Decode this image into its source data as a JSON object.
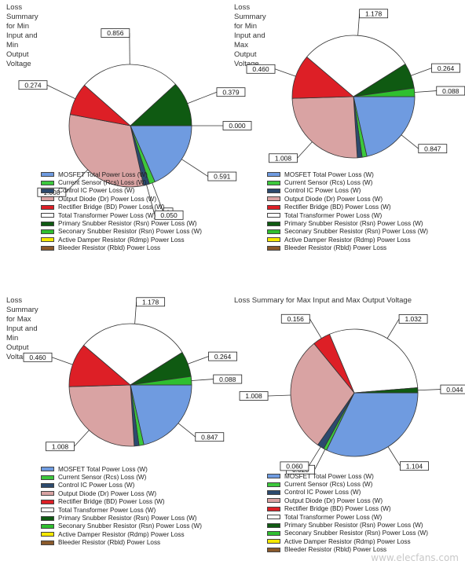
{
  "legend_colors": [
    "#6f9be0",
    "#3cc83c",
    "#2c4a6e",
    "#d9a3a3",
    "#dd1f26",
    "#ffffff",
    "#0f5a12",
    "#2fbf2f",
    "#f5e800",
    "#8b5a2b"
  ],
  "chart_data": [
    {
      "type": "pie",
      "title": "Loss Summary for Min Input and Min Output Voltage",
      "categories": [
        "MOSFET Total Power Loss (W)",
        "Current Sensor (Rcs) Loss (W)",
        "Control IC Power Loss (W)",
        "Output Diode (Dr) Power Loss (W)",
        "Rectifier Bridge (BD) Power Loss (W)",
        "Total Transformer Power Loss (W)",
        "Primary Snubber Resistor (Rsn) Power Loss (W)",
        "Seconary Snubber Resistor (Rsn) Power Loss (W)",
        "Active Damper Resistor (Rdmp) Power Loss",
        "Bleeder Resistor (Rbld) Power Loss"
      ],
      "values": [
        0.591,
        0.05,
        0.05,
        1.008,
        0.274,
        0.856,
        0.379,
        0.0,
        0.0,
        0.0
      ],
      "data_labels": [
        "0.591",
        "0",
        "0.050",
        "1.008",
        "0.274",
        "0.856",
        "0.379",
        "0.000",
        "",
        ""
      ],
      "legend_position": "bottom"
    },
    {
      "type": "pie",
      "title": "Loss Summary for Min Input and Max Output Voltage",
      "categories": [
        "MOSFET Total Power Loss (W)",
        "Current Sensor (Rcs) Loss (W)",
        "Control IC Power Loss (W)",
        "Output Diode (Dr) Power Loss (W)",
        "Rectifier Bridge (BD) Power Loss (W)",
        "Total Transformer Power Loss (W)",
        "Primary Snubber Resistor (Rsn) Power Loss (W)",
        "Seconary Snubber Resistor (Rsn) Power Loss (W)",
        "Active Damper Resistor (Rdmp) Power Loss",
        "Bleeder Resistor (Rbld) Power Loss"
      ],
      "values": [
        0.847,
        0.05,
        0.05,
        1.008,
        0.46,
        1.178,
        0.264,
        0.088,
        0.0,
        0.0
      ],
      "data_labels": [
        "0.847",
        "",
        "",
        "1.008",
        "0.460",
        "1.178",
        "0.264",
        "0.088",
        "",
        ""
      ],
      "legend_position": "bottom"
    },
    {
      "type": "pie",
      "title": "Loss Summary for Max Input and Min Output Voltage",
      "categories": [
        "MOSFET Total Power Loss (W)",
        "Current Sensor (Rcs) Loss (W)",
        "Control IC Power Loss (W)",
        "Output Diode (Dr) Power Loss (W)",
        "Rectifier Bridge (BD) Power Loss (W)",
        "Total Transformer Power Loss (W)",
        "Primary Snubber Resistor (Rsn) Power Loss (W)",
        "Seconary Snubber Resistor (Rsn) Power Loss (W)",
        "Active Damper Resistor (Rdmp) Power Loss",
        "Bleeder Resistor (Rbld) Power Loss"
      ],
      "values": [
        0.847,
        0.05,
        0.05,
        1.008,
        0.46,
        1.178,
        0.264,
        0.088,
        0.0,
        0.0
      ],
      "data_labels": [
        "0.847",
        "",
        "",
        "1.008",
        "0.460",
        "1.178",
        "0.264",
        "0.088",
        "",
        ""
      ],
      "legend_position": "bottom"
    },
    {
      "type": "pie",
      "title": "Loss Summary for Max Input and Max Output Voltage",
      "categories": [
        "MOSFET Total Power Loss (W)",
        "Current Sensor (Rcs) Loss (W)",
        "Control IC Power Loss (W)",
        "Output Diode (Dr) Power Loss (W)",
        "Rectifier Bridge (BD) Power Loss (W)",
        "Total Transformer Power Loss (W)",
        "Primary Snubber Resistor (Rsn) Power Loss (W)",
        "Seconary Snubber Resistor (Rsn) Power Loss (W)",
        "Active Damper Resistor (Rdmp) Power Loss",
        "Bleeder Resistor (Rbld) Power Loss"
      ],
      "values": [
        1.104,
        0.028,
        0.06,
        1.008,
        0.156,
        1.032,
        0.044,
        0.0,
        0.0,
        0.0
      ],
      "data_labels": [
        "1.104",
        "0.028",
        "0.060",
        "1.008",
        "0.156",
        "1.032",
        "0.044",
        "",
        "",
        ""
      ],
      "legend_position": "bottom"
    }
  ],
  "watermark": "www.elecfans.com"
}
